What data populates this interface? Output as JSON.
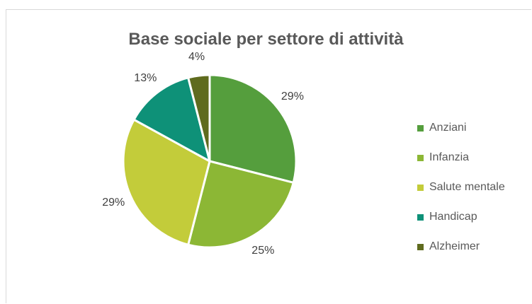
{
  "chart_data": {
    "type": "pie",
    "title": "Base sociale per settore di attività",
    "categories": [
      "Anziani",
      "Infanzia",
      "Salute mentale",
      "Handicap",
      "Alzheimer"
    ],
    "values": [
      29,
      25,
      29,
      13,
      4
    ],
    "value_labels": [
      "29%",
      "25%",
      "29%",
      "13%",
      "4%"
    ],
    "colors": [
      "#559E3D",
      "#8CB735",
      "#C3CC3A",
      "#0E9178",
      "#5F6B1E"
    ],
    "legend_position": "right"
  }
}
